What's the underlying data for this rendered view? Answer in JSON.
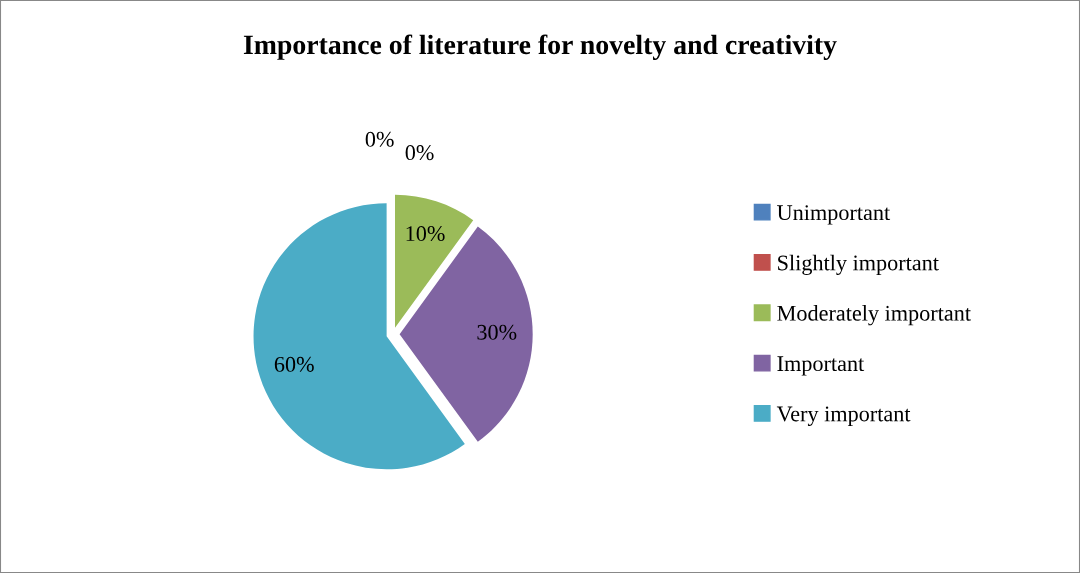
{
  "chart_data": {
    "type": "pie",
    "title": "Importance of literature for novelty and creativity",
    "categories": [
      "Unimportant",
      "Slightly important",
      "Moderately important",
      "Important",
      "Very important"
    ],
    "values": [
      0,
      0,
      10,
      30,
      60
    ],
    "value_labels": [
      "0%",
      "0%",
      "10%",
      "30%",
      "60%"
    ],
    "colors": [
      "#4f81bd",
      "#c0504d",
      "#9bbb59",
      "#8064a2",
      "#4bacc6"
    ],
    "legend": "right"
  }
}
